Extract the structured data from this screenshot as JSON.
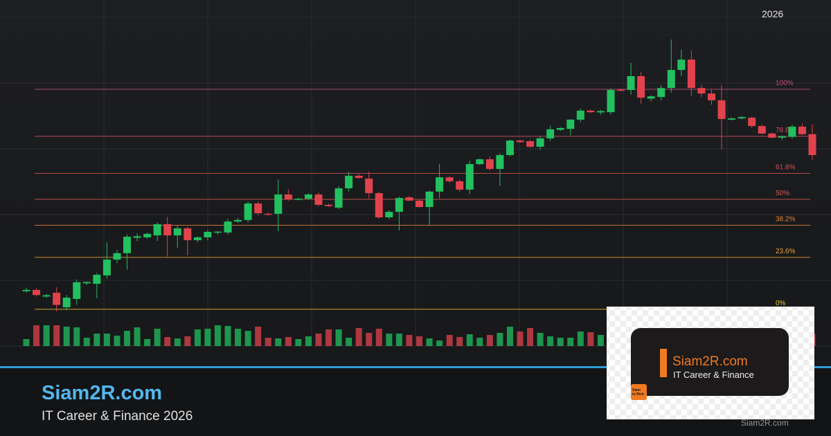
{
  "chart_data": {
    "type": "candlestick",
    "x_label": "2026",
    "ylim": [
      -16.7,
      134.3
    ],
    "up_color": "#22c05f",
    "down_color": "#e0434c",
    "ohlc": [
      [
        8.2,
        9.8,
        7.5,
        8.8
      ],
      [
        8.8,
        9.5,
        5.8,
        6.5
      ],
      [
        5.8,
        7,
        5.2,
        6.4
      ],
      [
        7.5,
        10,
        -1,
        2
      ],
      [
        0.9,
        6.5,
        -0.5,
        5.3
      ],
      [
        4.7,
        13.5,
        2,
        12.3
      ],
      [
        11.8,
        12.6,
        11,
        12.4
      ],
      [
        11.6,
        16.5,
        5,
        15.7
      ],
      [
        15.4,
        30.5,
        14,
        22.6
      ],
      [
        22.6,
        27,
        21,
        25.5
      ],
      [
        25.5,
        34,
        18,
        33
      ],
      [
        32.5,
        34.5,
        31,
        33.2
      ],
      [
        32.7,
        34.8,
        32,
        34.3
      ],
      [
        33.6,
        39.5,
        31,
        38.7
      ],
      [
        38.7,
        42,
        24,
        33.6
      ],
      [
        33.6,
        38,
        28,
        36.8
      ],
      [
        36.8,
        37.5,
        24.5,
        31.4
      ],
      [
        31.4,
        33.2,
        30.5,
        32.7
      ],
      [
        32.7,
        36,
        31.5,
        35.2
      ],
      [
        35,
        35.6,
        34,
        35.3
      ],
      [
        34.9,
        41,
        34,
        39.9
      ],
      [
        39.9,
        41.5,
        39.3,
        40.6
      ],
      [
        40.6,
        49,
        39.5,
        48.1
      ],
      [
        48.1,
        49,
        42.8,
        43.7
      ],
      [
        43.4,
        44,
        42.7,
        43.1
      ],
      [
        43.4,
        59,
        35.5,
        52.2
      ],
      [
        52.2,
        54.5,
        49.3,
        50
      ],
      [
        49.8,
        50.6,
        49.5,
        50.3
      ],
      [
        50.3,
        52.7,
        49.7,
        52.2
      ],
      [
        52.2,
        53,
        47,
        47.5
      ],
      [
        47.5,
        48,
        46.5,
        46.9
      ],
      [
        46.2,
        56,
        45.5,
        55
      ],
      [
        55,
        62.5,
        53.5,
        60.7
      ],
      [
        60.7,
        61.5,
        59.4,
        59.7
      ],
      [
        59.4,
        62.5,
        50.5,
        52.8
      ],
      [
        52.8,
        53.5,
        41.2,
        41.8
      ],
      [
        41.8,
        45,
        41,
        44.3
      ],
      [
        44.3,
        51.3,
        35.8,
        50.6
      ],
      [
        50.9,
        51.5,
        49.2,
        49.4
      ],
      [
        49.4,
        50,
        46.3,
        46.5
      ],
      [
        46.5,
        54,
        38.4,
        53.5
      ],
      [
        53.5,
        66,
        50.5,
        60
      ],
      [
        60,
        60.5,
        57.5,
        58.2
      ],
      [
        58.2,
        59,
        53.5,
        54.4
      ],
      [
        54.4,
        67.5,
        52.5,
        66
      ],
      [
        66,
        68.5,
        65.5,
        68.2
      ],
      [
        68.2,
        69.5,
        63,
        63.8
      ],
      [
        63.8,
        71,
        56,
        70.1
      ],
      [
        70.1,
        77.2,
        69.5,
        76.7
      ],
      [
        76.7,
        77,
        75.8,
        76
      ],
      [
        76.4,
        77,
        73.5,
        73.9
      ],
      [
        73.9,
        78.5,
        72.5,
        77.7
      ],
      [
        77.7,
        83.5,
        76.5,
        81.8
      ],
      [
        81.6,
        82.8,
        81,
        82.4
      ],
      [
        82,
        86.5,
        79,
        86.2
      ],
      [
        86.2,
        91.3,
        85,
        90.3
      ],
      [
        90.3,
        90.8,
        89.2,
        89.6
      ],
      [
        89.5,
        90.6,
        88.5,
        90.1
      ],
      [
        89.6,
        100.5,
        88.5,
        99.7
      ],
      [
        99.8,
        100.3,
        99,
        99.4
      ],
      [
        99.7,
        112,
        97.5,
        106
      ],
      [
        106,
        108,
        93.5,
        96.2
      ],
      [
        95.8,
        97.3,
        94.5,
        96.8
      ],
      [
        96.5,
        102,
        95,
        100.6
      ],
      [
        100.6,
        122.6,
        98.5,
        108.8
      ],
      [
        108.8,
        118,
        106,
        113.5
      ],
      [
        113.5,
        117.6,
        97,
        100.6
      ],
      [
        100.6,
        102,
        96.5,
        98.1
      ],
      [
        98.1,
        100,
        93,
        95
      ],
      [
        95,
        102,
        72.6,
        86.5
      ],
      [
        86.2,
        87.2,
        85.8,
        86.8
      ],
      [
        86.8,
        87.8,
        86.3,
        87.4
      ],
      [
        87.1,
        87.5,
        82.5,
        83.3
      ],
      [
        83.3,
        84,
        79.5,
        79.9
      ],
      [
        79.9,
        80.3,
        77.8,
        78
      ],
      [
        78,
        79,
        77,
        78.6
      ],
      [
        78.4,
        84,
        77.5,
        83
      ],
      [
        83,
        84.5,
        79.2,
        79.6
      ],
      [
        79.6,
        84,
        67.8,
        70.1
      ]
    ],
    "volume": [
      10,
      30,
      30,
      30,
      28,
      27,
      12,
      18,
      18,
      15,
      22,
      27,
      10,
      25,
      13,
      11,
      14,
      24,
      25,
      30,
      29,
      25,
      22,
      28,
      12,
      11,
      13,
      10,
      14,
      18,
      24,
      24,
      12,
      26,
      19,
      25,
      18,
      18,
      16,
      14,
      11,
      8,
      16,
      13,
      17,
      12,
      16,
      19,
      28,
      21,
      26,
      19,
      14,
      12,
      12,
      21,
      20,
      16,
      15,
      15,
      18,
      22,
      14,
      20,
      25,
      27,
      24,
      18,
      16,
      20,
      12,
      15,
      18,
      22,
      14,
      12,
      16,
      20,
      18
    ],
    "fib_levels": [
      {
        "value": 100,
        "label": "100%",
        "color": "#c4507c"
      },
      {
        "value": 78.6,
        "label": "78.6%",
        "color": "#d0505e"
      },
      {
        "value": 61.8,
        "label": "61.8%",
        "color": "#d65456"
      },
      {
        "value": 50,
        "label": "50%",
        "color": "#dc5c4c"
      },
      {
        "value": 38.2,
        "label": "38.2%",
        "color": "#e8843a"
      },
      {
        "value": 23.6,
        "label": "23.6%",
        "color": "#eca436"
      },
      {
        "value": 0,
        "label": "0%",
        "color": "#e8c630"
      }
    ]
  },
  "branding": {
    "title": "Siam2R.com",
    "subtitle": "IT Career & Finance 2026"
  },
  "card": {
    "title": "Siam2R.com",
    "subtitle": "IT Career & Finance",
    "logo_text": [
      "Siam",
      "to Rich"
    ]
  },
  "watermark": "Siam2R.com"
}
